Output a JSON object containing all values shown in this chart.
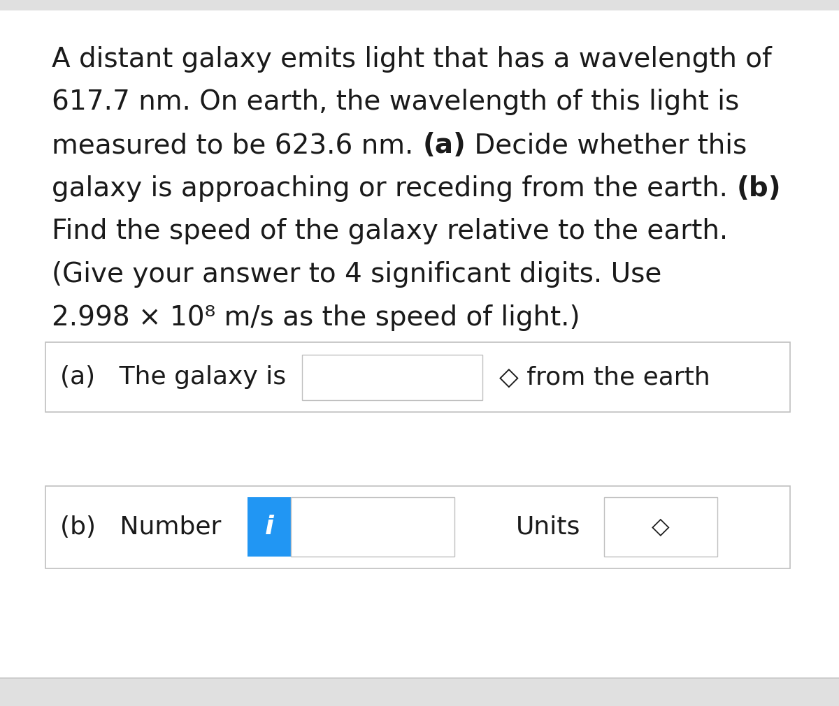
{
  "bg_color": "#f0f0f0",
  "white": "#ffffff",
  "text_color": "#1a1a1a",
  "border_color": "#c0c0c0",
  "blue_color": "#2196F3",
  "paragraph_lines": [
    "A distant galaxy emits light that has a wavelength of",
    "617.7 nm. On earth, the wavelength of this light is",
    "measured to be 623.6 nm. (a) Decide whether this",
    "galaxy is approaching or receding from the earth. (b)",
    "Find the speed of the galaxy relative to the earth.",
    "(Give your answer to 4 significant digits. Use",
    "2.998 × 10⁸ m/s as the speed of light.)"
  ],
  "row_a_label": "(a)   The galaxy is",
  "row_a_suffix": "◇ from the earth",
  "row_b_label": "(b)   Number",
  "row_b_units_label": "Units",
  "row_b_arrow": "◇",
  "info_icon": "i",
  "fontsize_main": 28,
  "fontsize_row": 26,
  "fontsize_super": 14
}
